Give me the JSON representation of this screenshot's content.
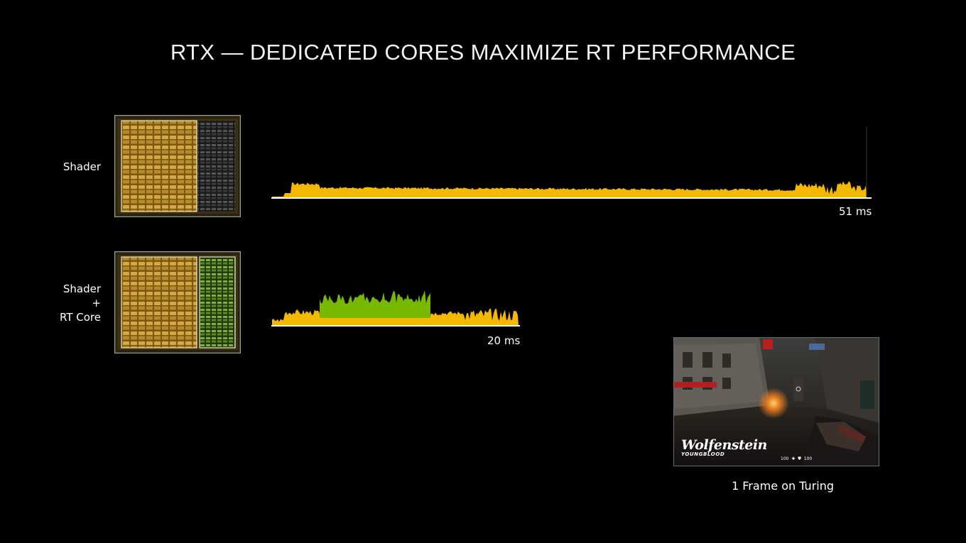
{
  "title": "RTX — DEDICATED CORES MAXIMIZE RT PERFORMANCE",
  "rows": [
    {
      "label_lines": [
        "Shader"
      ],
      "time_label": "51 ms"
    },
    {
      "label_lines": [
        "Shader",
        "+",
        "RT Core"
      ],
      "time_label": "20 ms"
    }
  ],
  "screenshot": {
    "logo_main": "Wolfenstein",
    "logo_sub": "YOUNGBLOOD",
    "hud_left": "100",
    "hud_right": "100",
    "caption": "1 Frame on Turing"
  },
  "colors": {
    "shader_workload": "#f5b800",
    "rt_core_workload": "#76b900",
    "chip_gold": "#b8902a",
    "chip_green": "#5f8a25",
    "axis": "#ffffff"
  }
}
